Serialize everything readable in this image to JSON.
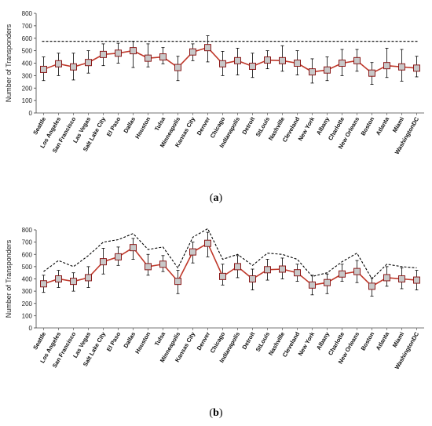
{
  "chart_data": [
    {
      "type": "line",
      "panel_label_letter": "a",
      "ylabel": "Number of Transponders",
      "ylim": [
        0,
        800
      ],
      "yticks": [
        0,
        100,
        200,
        300,
        400,
        500,
        600,
        700,
        800
      ],
      "grid": false,
      "categories": [
        "Seattle",
        "Los Angeles",
        "San Francisco",
        "Las Vegas",
        "Salt Lake City",
        "El Paso",
        "Dallas",
        "Houston",
        "Tulsa",
        "Minneapolis",
        "Kansas City",
        "Denver",
        "Chicago",
        "Indianapolis",
        "Detroit",
        "StLouis",
        "Nashville",
        "Cleveland",
        "New York",
        "Albany",
        "Charlotte",
        "New Orleans",
        "Boston",
        "Atlanta",
        "Miami",
        "WashingtonDC"
      ],
      "mean": [
        350,
        395,
        370,
        405,
        470,
        480,
        500,
        440,
        450,
        365,
        490,
        525,
        395,
        420,
        375,
        425,
        420,
        400,
        330,
        345,
        400,
        420,
        320,
        380,
        370,
        360
      ],
      "err_low": [
        260,
        300,
        265,
        320,
        380,
        400,
        365,
        370,
        395,
        260,
        420,
        410,
        300,
        305,
        285,
        355,
        335,
        305,
        240,
        260,
        300,
        335,
        230,
        285,
        255,
        290
      ],
      "err_high": [
        450,
        480,
        480,
        500,
        555,
        560,
        575,
        555,
        525,
        455,
        555,
        620,
        495,
        520,
        480,
        500,
        540,
        500,
        435,
        450,
        510,
        510,
        405,
        520,
        510,
        455
      ],
      "dashed_ref": 575,
      "colors": {
        "line": "#c0392b",
        "marker_fill": "#c8c8c8",
        "marker_edge": "#8b1a1a",
        "error": "#000000",
        "ref": "#000000"
      }
    },
    {
      "type": "line",
      "panel_label_letter": "b",
      "ylabel": "Number of Transponders",
      "ylim": [
        0,
        800
      ],
      "yticks": [
        0,
        100,
        200,
        300,
        400,
        500,
        600,
        700,
        800
      ],
      "grid": false,
      "categories": [
        "Seattle",
        "Los Angeles",
        "San Francisco",
        "Las Vegas",
        "Salt Lake City",
        "El Paso",
        "Dallas",
        "Houston",
        "Tulsa",
        "Minneapolis",
        "Kansas City",
        "Denver",
        "Chicago",
        "Indianapolis",
        "Detroit",
        "StLouis",
        "Nashville",
        "Cleveland",
        "New York",
        "Albany",
        "Charlotte",
        "New Orleans",
        "Boston",
        "Atlanta",
        "Miami",
        "WashingtonDC"
      ],
      "mean": [
        360,
        400,
        380,
        410,
        540,
        580,
        655,
        500,
        520,
        380,
        620,
        690,
        420,
        500,
        400,
        475,
        480,
        450,
        350,
        370,
        440,
        460,
        340,
        410,
        400,
        390
      ],
      "err_low": [
        290,
        330,
        300,
        330,
        440,
        510,
        560,
        430,
        460,
        280,
        530,
        580,
        350,
        410,
        310,
        390,
        400,
        380,
        270,
        280,
        380,
        370,
        260,
        340,
        320,
        310
      ],
      "err_high": [
        430,
        470,
        450,
        500,
        650,
        660,
        730,
        600,
        590,
        470,
        700,
        780,
        520,
        590,
        480,
        560,
        570,
        520,
        430,
        440,
        520,
        550,
        410,
        500,
        490,
        470
      ],
      "dashed_max": [
        460,
        550,
        500,
        590,
        700,
        720,
        770,
        640,
        660,
        490,
        740,
        810,
        560,
        600,
        510,
        610,
        600,
        560,
        420,
        450,
        540,
        610,
        400,
        520,
        500,
        490
      ],
      "colors": {
        "line": "#c0392b",
        "marker_fill": "#c8c8c8",
        "marker_edge": "#8b1a1a",
        "error": "#000000",
        "ref": "#000000"
      }
    }
  ]
}
